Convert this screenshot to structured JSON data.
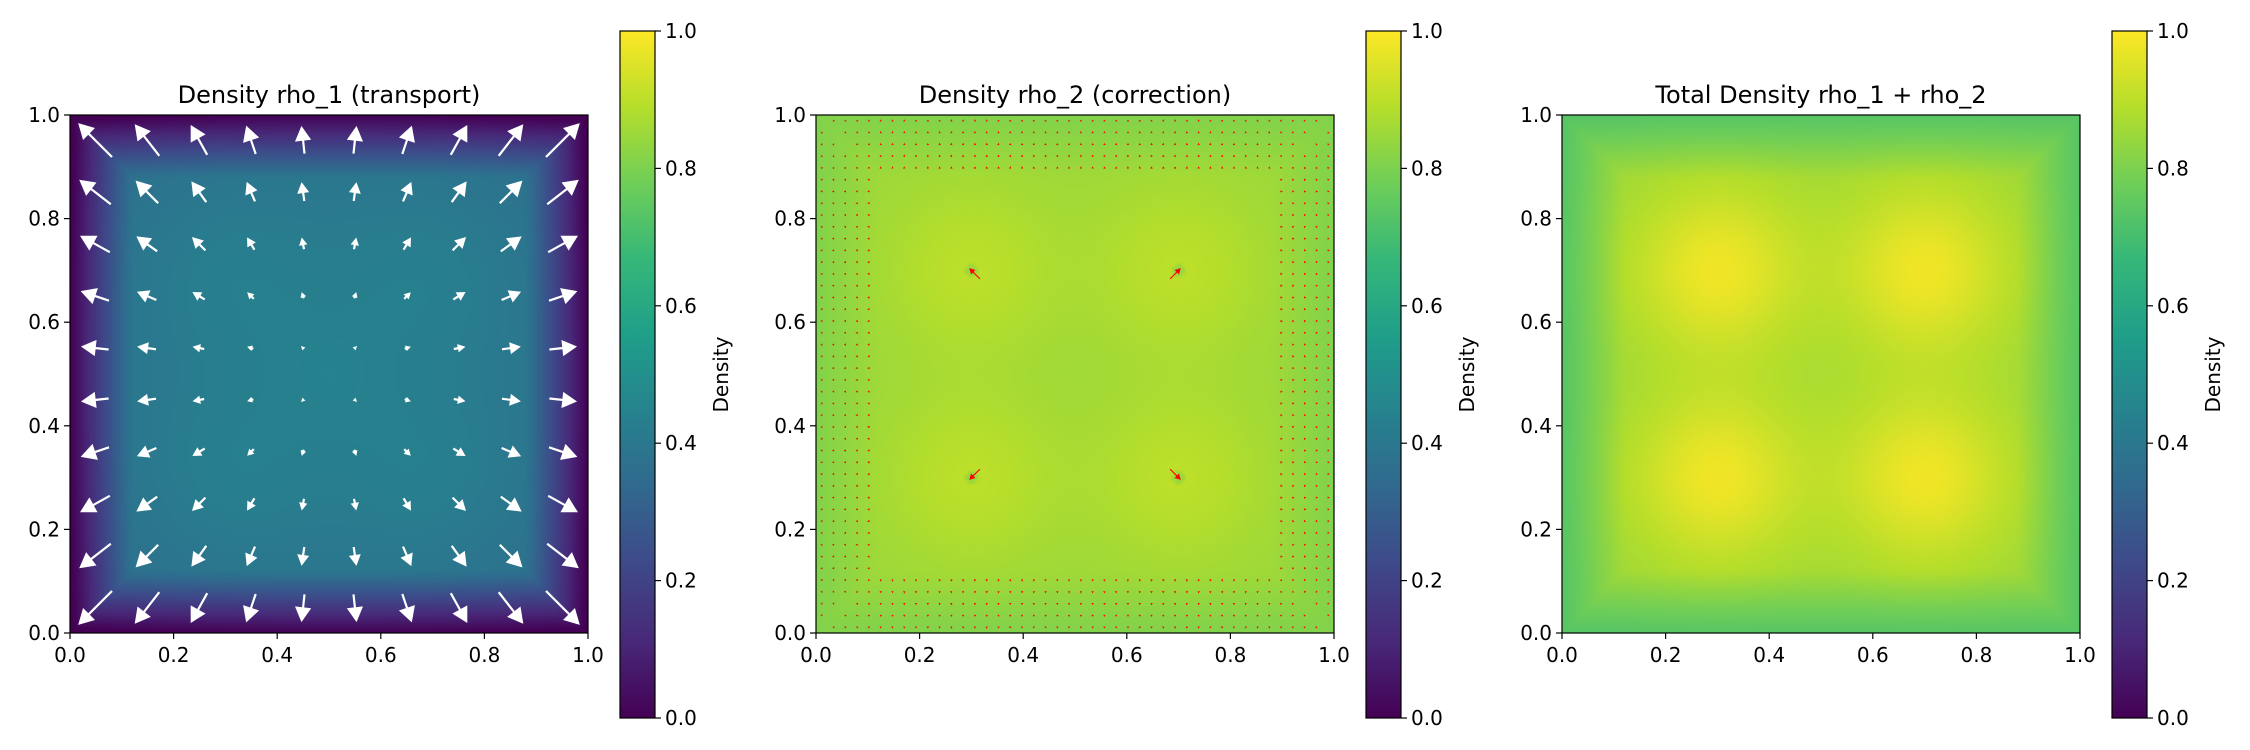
{
  "colors": {
    "viridis_stops": [
      "#440154",
      "#482878",
      "#3e4989",
      "#31688e",
      "#26828e",
      "#1f9e89",
      "#35b779",
      "#6ece58",
      "#b5de2b",
      "#fde725"
    ],
    "arrow_white": "#ffffff",
    "arrow_red": "#ff0000"
  },
  "chart_data": [
    {
      "type": "heatmap",
      "title": "Density rho_1 (transport)",
      "field": "rho_1",
      "x_ticks": [
        "0.0",
        "0.2",
        "0.4",
        "0.6",
        "0.8",
        "1.0"
      ],
      "y_ticks": [
        "0.0",
        "0.2",
        "0.4",
        "0.6",
        "0.8",
        "1.0"
      ],
      "xlim": [
        0,
        1
      ],
      "ylim": [
        0,
        1
      ],
      "quiver": "white, 10x10 grid, radial outward from (0.5, 0.5)",
      "colorbar": {
        "label": "Density",
        "ticks": [
          "0.0",
          "0.2",
          "0.4",
          "0.6",
          "0.8",
          "1.0"
        ],
        "range": [
          0,
          1
        ]
      }
    },
    {
      "type": "heatmap",
      "title": "Density rho_2 (correction)",
      "field": "rho_2",
      "x_ticks": [
        "0.0",
        "0.2",
        "0.4",
        "0.6",
        "0.8",
        "1.0"
      ],
      "y_ticks": [
        "0.0",
        "0.2",
        "0.4",
        "0.6",
        "0.8",
        "1.0"
      ],
      "xlim": [
        0,
        1
      ],
      "ylim": [
        0,
        1
      ],
      "blob_centers": [
        [
          0.3,
          0.3
        ],
        [
          0.7,
          0.3
        ],
        [
          0.3,
          0.7
        ],
        [
          0.7,
          0.7
        ]
      ],
      "quiver": "red, dense grid",
      "colorbar": {
        "label": "Density",
        "ticks": [
          "0.0",
          "0.2",
          "0.4",
          "0.6",
          "0.8",
          "1.0"
        ],
        "range": [
          0,
          1
        ]
      }
    },
    {
      "type": "heatmap",
      "title": "Total Density rho_1 + rho_2",
      "field": "total",
      "x_ticks": [
        "0.0",
        "0.2",
        "0.4",
        "0.6",
        "0.8",
        "1.0"
      ],
      "y_ticks": [
        "0.0",
        "0.2",
        "0.4",
        "0.6",
        "0.8",
        "1.0"
      ],
      "xlim": [
        0,
        1
      ],
      "ylim": [
        0,
        1
      ],
      "blob_centers": [
        [
          0.3,
          0.3
        ],
        [
          0.7,
          0.3
        ],
        [
          0.3,
          0.7
        ],
        [
          0.7,
          0.7
        ]
      ],
      "colorbar": {
        "label": "Density",
        "ticks": [
          "0.0",
          "0.2",
          "0.4",
          "0.6",
          "0.8",
          "1.0"
        ],
        "range": [
          0,
          1
        ]
      }
    }
  ]
}
